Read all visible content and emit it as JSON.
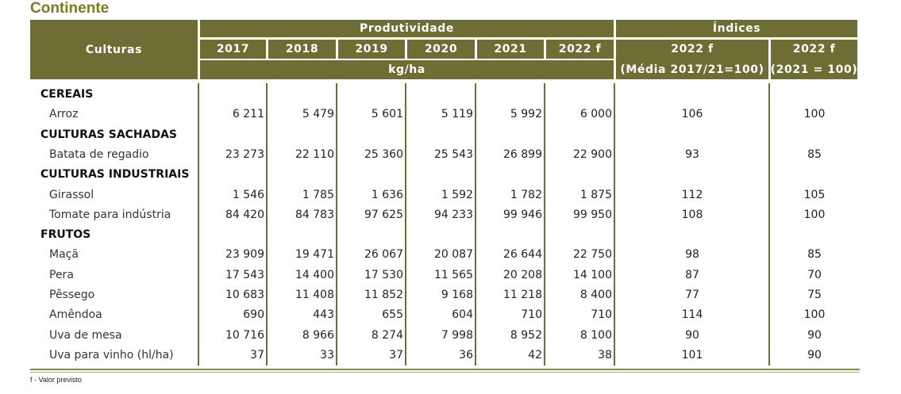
{
  "title": "Continente",
  "header": {
    "culturas": "Culturas",
    "produtividade": "Produtividade",
    "indices": "Índices",
    "years": [
      "2017",
      "2018",
      "2019",
      "2020",
      "2021",
      "2022 f"
    ],
    "unit": "kg/ha",
    "index1_title": "2022 f",
    "index1_base": "(Média 2017/21=100)",
    "index2_title": "2022 f",
    "index2_base": "(2021 = 100)"
  },
  "groups": [
    {
      "category": "CEREAIS",
      "rows": [
        {
          "label": "Arroz",
          "values": [
            "6 211",
            "5 479",
            "5 601",
            "5 119",
            "5 992",
            "6 000"
          ],
          "idx1": "106",
          "idx2": "100"
        }
      ]
    },
    {
      "category": "CULTURAS SACHADAS",
      "rows": [
        {
          "label": "Batata de regadio",
          "values": [
            "23 273",
            "22 110",
            "25 360",
            "25 543",
            "26 899",
            "22 900"
          ],
          "idx1": "93",
          "idx2": "85"
        }
      ]
    },
    {
      "category": "CULTURAS INDUSTRIAIS",
      "rows": [
        {
          "label": "Girassol",
          "values": [
            "1 546",
            "1 785",
            "1 636",
            "1 592",
            "1 782",
            "1 875"
          ],
          "idx1": "112",
          "idx2": "105"
        },
        {
          "label": "Tomate para indústria",
          "values": [
            "84 420",
            "84 783",
            "97 625",
            "94 233",
            "99 946",
            "99 950"
          ],
          "idx1": "108",
          "idx2": "100"
        }
      ]
    },
    {
      "category": "FRUTOS",
      "rows": [
        {
          "label": "Maçã",
          "values": [
            "23 909",
            "19 471",
            "26 067",
            "20 087",
            "26 644",
            "22 750"
          ],
          "idx1": "98",
          "idx2": "85"
        },
        {
          "label": "Pera",
          "values": [
            "17 543",
            "14 400",
            "17 530",
            "11 565",
            "20 208",
            "14 100"
          ],
          "idx1": "87",
          "idx2": "70"
        },
        {
          "label": "Pêssego",
          "values": [
            "10 683",
            "11 408",
            "11 852",
            "9 168",
            "11 218",
            "8 400"
          ],
          "idx1": "77",
          "idx2": "75"
        },
        {
          "label": "Amêndoa",
          "values": [
            "690",
            "443",
            "655",
            "604",
            "710",
            "710"
          ],
          "idx1": "114",
          "idx2": "100"
        },
        {
          "label": "Uva de mesa",
          "values": [
            "10 716",
            "8 966",
            "8 274",
            "7 998",
            "8 952",
            "8 100"
          ],
          "idx1": "90",
          "idx2": "90"
        },
        {
          "label": "Uva para vinho (hl/ha)",
          "values": [
            "37",
            "33",
            "37",
            "36",
            "42",
            "38"
          ],
          "idx1": "101",
          "idx2": "90"
        }
      ]
    }
  ],
  "footer": "f - Valor previsto"
}
